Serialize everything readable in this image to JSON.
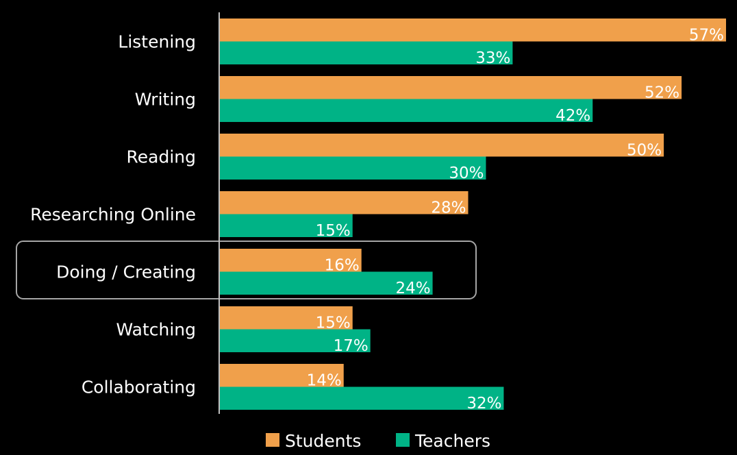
{
  "chart_data": {
    "type": "hbar",
    "categories": [
      "Listening",
      "Writing",
      "Reading",
      "Researching Online",
      "Doing / Creating",
      "Watching",
      "Collaborating"
    ],
    "series": [
      {
        "name": "Students",
        "color": "#f0a04b",
        "values": [
          57,
          52,
          50,
          28,
          16,
          15,
          14
        ],
        "value_labels": [
          "57%",
          "52%",
          "50%",
          "28%",
          "16%",
          "15%",
          "14%"
        ]
      },
      {
        "name": "Teachers",
        "color": "#00b386",
        "values": [
          33,
          42,
          30,
          15,
          24,
          17,
          32
        ],
        "value_labels": [
          "33%",
          "42%",
          "30%",
          "15%",
          "24%",
          "17%",
          "32%"
        ]
      }
    ],
    "legend": "bottom"
  }
}
